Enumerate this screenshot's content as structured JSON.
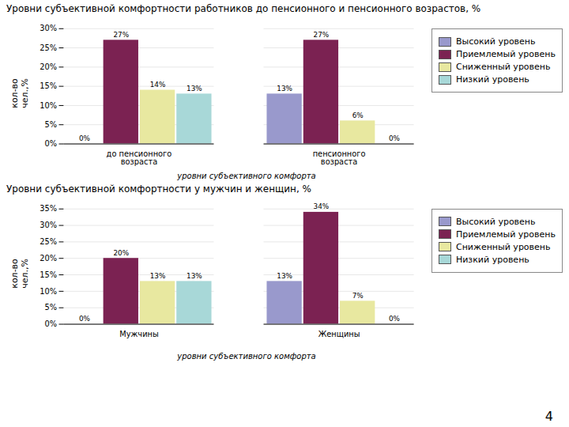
{
  "chart_data": [
    {
      "type": "bar",
      "title": "Уровни субъективной комфортности работников до пенсионного и пенсионного возрастов, %",
      "categories": [
        "до пенсионного\nвозраста",
        "пенсионного\nвозраста"
      ],
      "series": [
        {
          "name": "Высокий уровень",
          "color": "#9999CC",
          "values": [
            0,
            13
          ],
          "value_labels": [
            "0%",
            "13%"
          ]
        },
        {
          "name": "Приемлемый уровень",
          "color": "#7B2252",
          "values": [
            27,
            27
          ],
          "value_labels": [
            "27%",
            "27%"
          ]
        },
        {
          "name": "Сниженный уровень",
          "color": "#E8E8A0",
          "values": [
            14,
            6
          ],
          "value_labels": [
            "14%",
            "6%"
          ]
        },
        {
          "name": "Низкий уровень",
          "color": "#A8D8D8",
          "values": [
            13,
            0
          ],
          "value_labels": [
            "13%",
            "0%"
          ]
        }
      ],
      "xlabel": "уровни субъективного комфорта",
      "ylabel": "кол-во\nчел.,%",
      "ylim": [
        0,
        30
      ],
      "yticks": [
        {
          "value": 0,
          "label": "0%"
        },
        {
          "value": 5,
          "label": "5%"
        },
        {
          "value": 10,
          "label": "10%"
        },
        {
          "value": 15,
          "label": "15%"
        },
        {
          "value": 20,
          "label": "20%"
        },
        {
          "value": 25,
          "label": "25%"
        },
        {
          "value": 30,
          "label": "30%"
        }
      ],
      "grid": true,
      "legend": "right",
      "data_labels": true
    },
    {
      "type": "bar",
      "title": "Уровни субъективной комфортности у мужчин и женщин, %",
      "categories": [
        "Мужчины",
        "Женщины"
      ],
      "series": [
        {
          "name": "Высокий уровень",
          "color": "#9999CC",
          "values": [
            0,
            13
          ],
          "value_labels": [
            "0%",
            "13%"
          ]
        },
        {
          "name": "Приемлемый уровень",
          "color": "#7B2252",
          "values": [
            20,
            34
          ],
          "value_labels": [
            "20%",
            "34%"
          ]
        },
        {
          "name": "Сниженный уровень",
          "color": "#E8E8A0",
          "values": [
            13,
            7
          ],
          "value_labels": [
            "13%",
            "7%"
          ]
        },
        {
          "name": "Низкий уровень",
          "color": "#A8D8D8",
          "values": [
            13,
            0
          ],
          "value_labels": [
            "13%",
            "0%"
          ]
        }
      ],
      "xlabel": "уровни субъективного комфорта",
      "ylabel": "кол-во\nчел.,%",
      "ylim": [
        0,
        35
      ],
      "yticks": [
        {
          "value": 0,
          "label": "0%"
        },
        {
          "value": 5,
          "label": "5%"
        },
        {
          "value": 10,
          "label": "10%"
        },
        {
          "value": 15,
          "label": "15%"
        },
        {
          "value": 20,
          "label": "20%"
        },
        {
          "value": 25,
          "label": "25%"
        },
        {
          "value": 30,
          "label": "30%"
        },
        {
          "value": 35,
          "label": "35%"
        }
      ],
      "grid": true,
      "legend": "right",
      "data_labels": true,
      "annotations": [
        "4"
      ]
    }
  ]
}
